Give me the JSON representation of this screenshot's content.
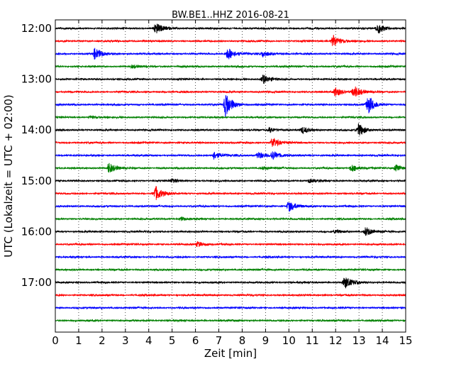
{
  "chart_data": {
    "type": "line",
    "title": "BW.BE1..HHZ 2016-08-21",
    "xlabel": "Zeit  [min]",
    "ylabel": "UTC (Lokalzeit = UTC + 02:00)",
    "xlim": [
      0,
      15
    ],
    "x_ticks": [
      0,
      1,
      2,
      3,
      4,
      5,
      6,
      7,
      8,
      9,
      10,
      11,
      12,
      13,
      14,
      15
    ],
    "y_tick_labels": [
      "12:00",
      "13:00",
      "14:00",
      "15:00",
      "16:00",
      "17:00"
    ],
    "grid_x": true,
    "trace_colors": [
      "#000000",
      "#ff0000",
      "#0000ff",
      "#008000"
    ],
    "traces": [
      {
        "start": "12:00",
        "color": "#000000",
        "events": [
          {
            "t": 4.3,
            "amp": 0.7
          },
          {
            "t": 13.8,
            "amp": 0.7
          }
        ]
      },
      {
        "start": "12:15",
        "color": "#ff0000",
        "events": [
          {
            "t": 11.9,
            "amp": 0.8
          }
        ]
      },
      {
        "start": "12:30",
        "color": "#0000ff",
        "events": [
          {
            "t": 1.7,
            "amp": 0.7
          },
          {
            "t": 7.4,
            "amp": 0.8
          },
          {
            "t": 8.9,
            "amp": 0.4
          }
        ]
      },
      {
        "start": "12:45",
        "color": "#008000",
        "events": [
          {
            "t": 3.3,
            "amp": 0.2
          }
        ]
      },
      {
        "start": "13:00",
        "color": "#000000",
        "events": [
          {
            "t": 8.9,
            "amp": 0.6
          }
        ]
      },
      {
        "start": "13:15",
        "color": "#ff0000",
        "events": [
          {
            "t": 12.0,
            "amp": 0.6
          },
          {
            "t": 12.8,
            "amp": 0.8
          }
        ]
      },
      {
        "start": "13:30",
        "color": "#0000ff",
        "events": [
          {
            "t": 7.3,
            "amp": 1.6
          },
          {
            "t": 13.4,
            "amp": 1.1
          }
        ]
      },
      {
        "start": "13:45",
        "color": "#008000",
        "events": [
          {
            "t": 1.5,
            "amp": 0.2
          }
        ]
      },
      {
        "start": "14:00",
        "color": "#000000",
        "events": [
          {
            "t": 10.6,
            "amp": 0.4
          },
          {
            "t": 13.0,
            "amp": 0.8
          },
          {
            "t": 9.2,
            "amp": 0.3
          }
        ]
      },
      {
        "start": "14:15",
        "color": "#ff0000",
        "events": [
          {
            "t": 9.3,
            "amp": 0.7
          }
        ]
      },
      {
        "start": "14:30",
        "color": "#0000ff",
        "events": [
          {
            "t": 6.8,
            "amp": 0.5
          },
          {
            "t": 8.7,
            "amp": 0.5
          },
          {
            "t": 9.3,
            "amp": 0.5
          }
        ]
      },
      {
        "start": "14:45",
        "color": "#008000",
        "events": [
          {
            "t": 2.3,
            "amp": 0.7
          },
          {
            "t": 12.7,
            "amp": 0.5
          },
          {
            "t": 14.6,
            "amp": 0.4
          },
          {
            "t": 8.9,
            "amp": 0.2
          }
        ]
      },
      {
        "start": "15:00",
        "color": "#000000",
        "events": [
          {
            "t": 5.0,
            "amp": 0.25
          },
          {
            "t": 10.9,
            "amp": 0.25
          }
        ]
      },
      {
        "start": "15:15",
        "color": "#ff0000",
        "events": [
          {
            "t": 4.3,
            "amp": 0.9
          }
        ]
      },
      {
        "start": "15:30",
        "color": "#0000ff",
        "events": [
          {
            "t": 10.0,
            "amp": 0.7
          }
        ]
      },
      {
        "start": "15:45",
        "color": "#008000",
        "events": [
          {
            "t": 5.4,
            "amp": 0.2
          }
        ]
      },
      {
        "start": "16:00",
        "color": "#000000",
        "events": [
          {
            "t": 13.3,
            "amp": 0.6
          },
          {
            "t": 12.0,
            "amp": 0.2
          }
        ]
      },
      {
        "start": "16:15",
        "color": "#ff0000",
        "events": [
          {
            "t": 6.1,
            "amp": 0.35
          }
        ]
      },
      {
        "start": "16:30",
        "color": "#0000ff",
        "events": []
      },
      {
        "start": "16:45",
        "color": "#008000",
        "events": []
      },
      {
        "start": "17:00",
        "color": "#000000",
        "events": [
          {
            "t": 12.4,
            "amp": 0.8
          }
        ]
      },
      {
        "start": "17:15",
        "color": "#ff0000",
        "events": []
      },
      {
        "start": "17:30",
        "color": "#0000ff",
        "events": []
      },
      {
        "start": "17:45",
        "color": "#008000",
        "events": []
      }
    ]
  }
}
